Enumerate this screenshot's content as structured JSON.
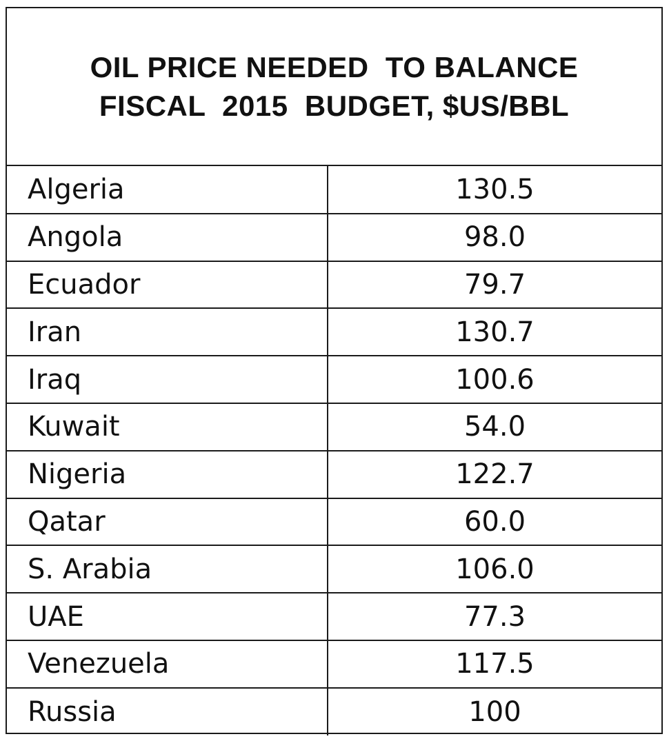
{
  "chart_data": {
    "type": "table",
    "title_lines": [
      "OIL PRICE NEEDED  TO BALANCE",
      "FISCAL  2015  BUDGET, $US/BBL"
    ],
    "rows": [
      {
        "country": "Algeria",
        "value": "130.5"
      },
      {
        "country": "Angola",
        "value": "98.0"
      },
      {
        "country": "Ecuador",
        "value": "79.7"
      },
      {
        "country": "Iran",
        "value": "130.7"
      },
      {
        "country": "Iraq",
        "value": "100.6"
      },
      {
        "country": "Kuwait",
        "value": "54.0"
      },
      {
        "country": "Nigeria",
        "value": "122.7"
      },
      {
        "country": "Qatar",
        "value": "60.0"
      },
      {
        "country": "S. Arabia",
        "value": "106.0"
      },
      {
        "country": "UAE",
        "value": "77.3"
      },
      {
        "country": "Venezuela",
        "value": "117.5"
      },
      {
        "country": "Russia",
        "value": "100"
      }
    ]
  },
  "colors": {
    "border": "#1a1a1a",
    "text": "#111111",
    "background": "#ffffff"
  }
}
